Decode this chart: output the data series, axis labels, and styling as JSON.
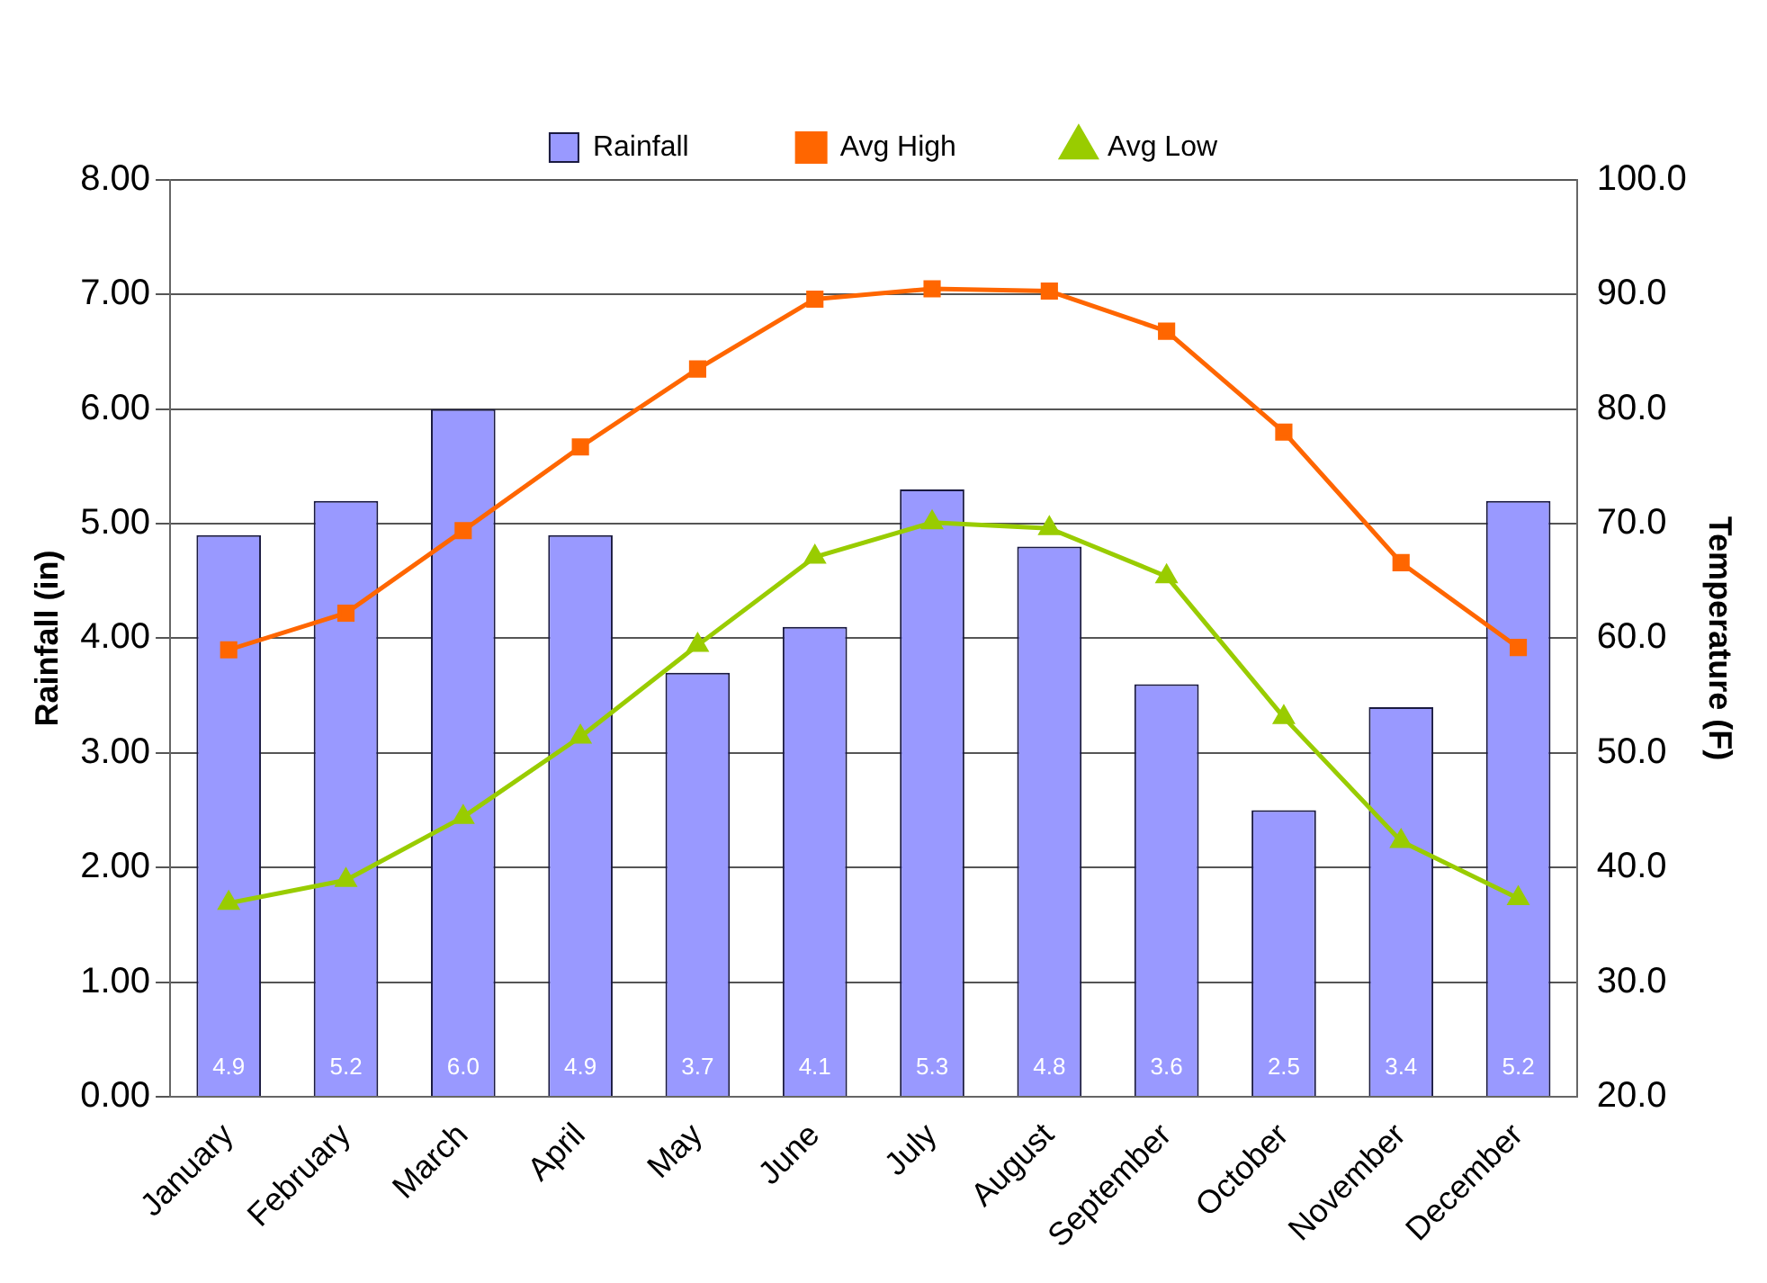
{
  "chart_data": {
    "type": "bar",
    "ylabel": "Rainfall (in)",
    "y2label": "Temperature (F)",
    "categories": [
      "January",
      "February",
      "March",
      "April",
      "May",
      "June",
      "July",
      "August",
      "September",
      "October",
      "November",
      "December"
    ],
    "series": [
      {
        "name": "Rainfall",
        "color": "#9999ff",
        "values": [
          4.9,
          5.2,
          6.0,
          4.9,
          3.7,
          4.1,
          5.3,
          4.8,
          3.6,
          2.5,
          3.4,
          5.2
        ],
        "value_labels": [
          "4.9",
          "5.2",
          "6.0",
          "4.9",
          "3.7",
          "4.1",
          "5.3",
          "4.8",
          "3.6",
          "2.5",
          "3.4",
          "5.2"
        ]
      },
      {
        "name": "Avg High",
        "type": "line",
        "axis": "y2",
        "color": "#ff6600",
        "marker": "square",
        "values": [
          59.0,
          62.2,
          69.4,
          76.7,
          83.5,
          89.6,
          90.5,
          90.3,
          86.8,
          78.0,
          66.6,
          59.2
        ]
      },
      {
        "name": "Avg Low",
        "type": "line",
        "axis": "y2",
        "color": "#99cc00",
        "marker": "triangle",
        "values": [
          36.9,
          38.9,
          44.4,
          51.4,
          59.4,
          67.1,
          70.1,
          69.6,
          65.4,
          53.1,
          42.3,
          37.3
        ]
      }
    ],
    "ylim": [
      0,
      8
    ],
    "yticks": [
      {
        "value": 0,
        "label": "0.00"
      },
      {
        "value": 1,
        "label": "1.00"
      },
      {
        "value": 2,
        "label": "2.00"
      },
      {
        "value": 3,
        "label": "3.00"
      },
      {
        "value": 4,
        "label": "4.00"
      },
      {
        "value": 5,
        "label": "5.00"
      },
      {
        "value": 6,
        "label": "6.00"
      },
      {
        "value": 7,
        "label": "7.00"
      },
      {
        "value": 8,
        "label": "8.00"
      }
    ],
    "y2lim": [
      20,
      100
    ],
    "y2ticks": [
      {
        "value": 20,
        "label": "20.0"
      },
      {
        "value": 30,
        "label": "30.0"
      },
      {
        "value": 40,
        "label": "40.0"
      },
      {
        "value": 50,
        "label": "50.0"
      },
      {
        "value": 60,
        "label": "60.0"
      },
      {
        "value": 70,
        "label": "70.0"
      },
      {
        "value": 80,
        "label": "80.0"
      },
      {
        "value": 90,
        "label": "90.0"
      },
      {
        "value": 100,
        "label": "100.0"
      }
    ],
    "grid": "y",
    "legend": "top"
  }
}
